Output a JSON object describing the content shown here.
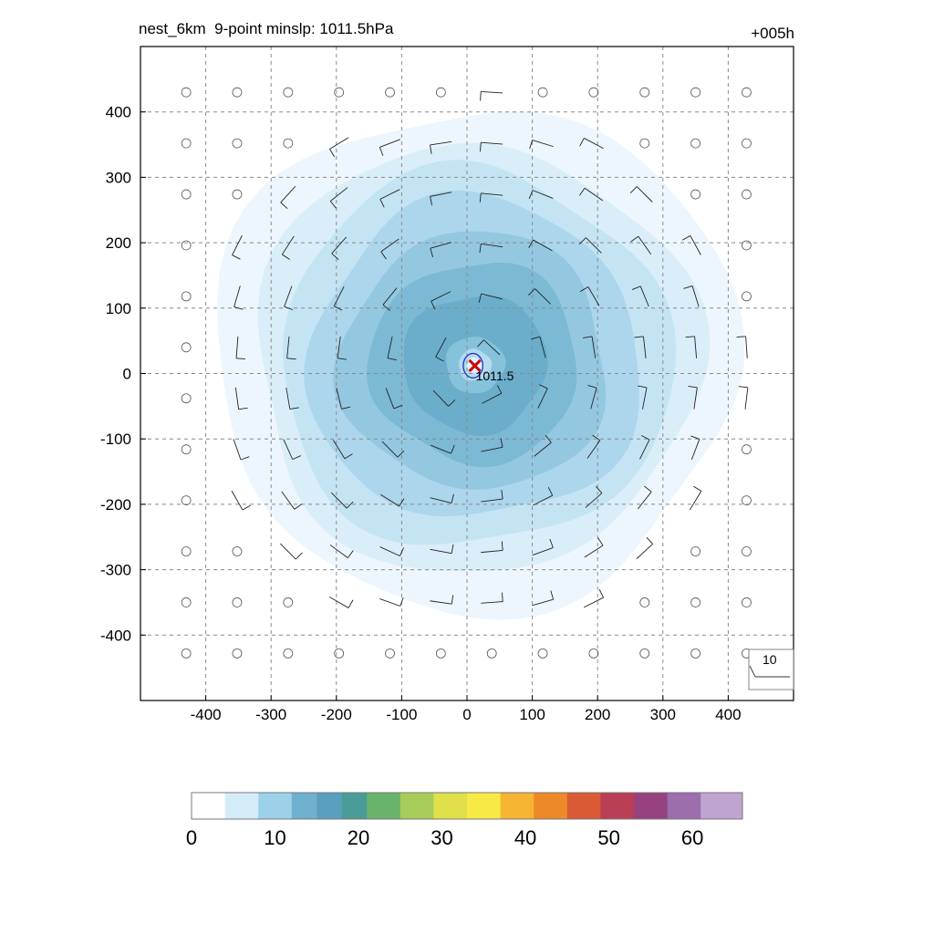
{
  "header": {
    "title": "nest_6km  9-point minslp: 1011.5hPa",
    "forecast_hour": "+005h"
  },
  "chart_data": {
    "type": "heatmap",
    "title": "nest_6km  9-point minslp: 1011.5hPa",
    "forecast_hour": "+005h",
    "xlabel": "",
    "ylabel": "",
    "xlim": [
      -500,
      500
    ],
    "ylim": [
      -500,
      500
    ],
    "x_ticks": [
      -400,
      -300,
      -200,
      -100,
      0,
      100,
      200,
      300,
      400
    ],
    "y_ticks": [
      400,
      300,
      200,
      100,
      0,
      -100,
      -200,
      -300,
      -400
    ],
    "x_tick_labels": [
      "-400",
      "-300",
      "-200",
      "-100",
      "0",
      "100",
      "200",
      "300",
      "400"
    ],
    "y_tick_labels": [
      "400",
      "300",
      "200",
      "100",
      "0",
      "-100",
      "-200",
      "-300",
      "-400"
    ],
    "grid": true,
    "wind_speed_contours": [
      {
        "level": 2,
        "radius": 400,
        "color": "#edf6fc"
      },
      {
        "level": 4,
        "radius": 340,
        "color": "#d9eef9"
      },
      {
        "level": 6,
        "radius": 300,
        "color": "#c4e4f4"
      },
      {
        "level": 8,
        "radius": 255,
        "color": "#acd6ec"
      },
      {
        "level": 10,
        "radius": 205,
        "color": "#94c8e1"
      },
      {
        "level": 12,
        "radius": 160,
        "color": "#7cb9d5"
      },
      {
        "level": 14,
        "radius": 110,
        "color": "#6aaecc"
      },
      {
        "level": 12,
        "radius": 45,
        "color": "#86c2db"
      },
      {
        "level": 8,
        "radius": 25,
        "color": "#b6dbec"
      },
      {
        "level": 4,
        "radius": 12,
        "color": "#e3f2fa"
      }
    ],
    "pressure_contour": {
      "label": "1011.5",
      "color": "#1a2fd6",
      "radius": 24
    },
    "storm_center": {
      "x": 12,
      "y": 12,
      "marker": "x",
      "color": "#cc0000"
    },
    "wind_barbs": {
      "grid_spacing": 78,
      "reference_label": "10",
      "calm_marker": "circle"
    },
    "colorbar": {
      "min": 0,
      "max": 66,
      "tick_values": [
        0,
        10,
        20,
        30,
        40,
        50,
        60
      ],
      "tick_labels": [
        "0",
        "10",
        "20",
        "30",
        "40",
        "50",
        "60"
      ],
      "stops": [
        {
          "value": 0,
          "color": "#ffffff"
        },
        {
          "value": 4,
          "color": "#d4ecf8"
        },
        {
          "value": 8,
          "color": "#9dd1ea"
        },
        {
          "value": 12,
          "color": "#6fb0cf"
        },
        {
          "value": 15,
          "color": "#5aa0be"
        },
        {
          "value": 18,
          "color": "#4a9c98"
        },
        {
          "value": 21,
          "color": "#6ab36c"
        },
        {
          "value": 25,
          "color": "#a7cc5a"
        },
        {
          "value": 29,
          "color": "#e0e04a"
        },
        {
          "value": 33,
          "color": "#f7ea47"
        },
        {
          "value": 37,
          "color": "#f5b533"
        },
        {
          "value": 41,
          "color": "#ec8a2a"
        },
        {
          "value": 45,
          "color": "#d95a35"
        },
        {
          "value": 49,
          "color": "#b83f55"
        },
        {
          "value": 53,
          "color": "#96427e"
        },
        {
          "value": 57,
          "color": "#9c6ead"
        },
        {
          "value": 61,
          "color": "#c0a4d0"
        },
        {
          "value": 66,
          "color": "#f3eff7"
        }
      ]
    }
  }
}
